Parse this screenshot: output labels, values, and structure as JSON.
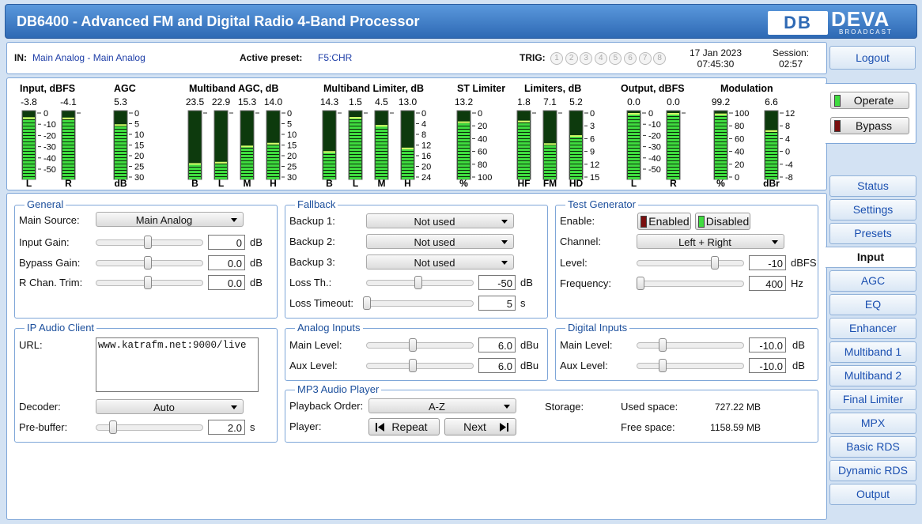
{
  "header": {
    "title": "DB6400 - Advanced FM and Digital Radio 4-Band Processor",
    "logo_mark": "DB",
    "logo_brand": "DEVA",
    "logo_sub": "BROADCAST"
  },
  "status": {
    "in_label": "IN:",
    "in_value": "Main Analog - Main Analog",
    "preset_label": "Active preset:",
    "preset_value": "F5:CHR",
    "trig_label": "TRIG:",
    "trig": [
      "1",
      "2",
      "3",
      "4",
      "5",
      "6",
      "7",
      "8"
    ],
    "date": "17 Jan 2023",
    "time": "07:45:30",
    "session_label": "Session:",
    "session_value": "02:57"
  },
  "side": {
    "logout": "Logout",
    "operate": "Operate",
    "bypass": "Bypass",
    "menu": [
      {
        "label": "Status"
      },
      {
        "label": "Settings"
      },
      {
        "label": "Presets"
      },
      {
        "label": "Input",
        "active": true
      },
      {
        "label": "AGC"
      },
      {
        "label": "EQ"
      },
      {
        "label": "Enhancer"
      },
      {
        "label": "Multiband 1"
      },
      {
        "label": "Multiband 2"
      },
      {
        "label": "Final Limiter"
      },
      {
        "label": "MPX"
      },
      {
        "label": "Basic RDS"
      },
      {
        "label": "Dynamic RDS"
      },
      {
        "label": "Output"
      }
    ]
  },
  "meters": [
    {
      "title": "Input, dBFS",
      "bars": [
        {
          "label": "L",
          "value": -3.8
        },
        {
          "label": "R",
          "value": -4.1
        }
      ],
      "scales": [
        [
          0,
          -10,
          -20,
          -30,
          -40,
          -50
        ]
      ]
    },
    {
      "title": "AGC",
      "bars": [
        {
          "label": "dB",
          "value": 5.3
        }
      ],
      "scales": [
        [
          0,
          5,
          10,
          15,
          20,
          25,
          30
        ]
      ]
    },
    {
      "title": "Multiband AGC, dB",
      "bars": [
        {
          "label": "B",
          "value": 23.5
        },
        {
          "label": "L",
          "value": 22.9
        },
        {
          "label": "M",
          "value": 15.3
        },
        {
          "label": "H",
          "value": 14.0,
          "value_label": "14.0"
        }
      ],
      "scales": [
        [
          0,
          5,
          10,
          15,
          20,
          25,
          30
        ]
      ]
    },
    {
      "title": "Multiband Limiter, dB",
      "bars": [
        {
          "label": "B",
          "value": 14.3
        },
        {
          "label": "L",
          "value": 1.5
        },
        {
          "label": "M",
          "value": 4.5
        },
        {
          "label": "H",
          "value": 13.0,
          "value_label": "13.0"
        }
      ],
      "scales": [
        [
          0,
          4,
          8,
          12,
          16,
          20,
          24
        ]
      ]
    },
    {
      "title": "ST Limiter",
      "bars": [
        {
          "label": "%",
          "value": 13.2
        }
      ],
      "scales": [
        [
          0,
          20,
          40,
          60,
          80,
          100
        ]
      ]
    },
    {
      "title": "Limiters, dB",
      "bars": [
        {
          "label": "HF",
          "value": 1.8
        },
        {
          "label": "FM",
          "value": 7.1
        },
        {
          "label": "HD",
          "value": 5.2
        }
      ],
      "scales": [
        [
          0,
          3,
          6,
          9,
          12,
          15
        ]
      ]
    },
    {
      "title": "Output, dBFS",
      "bars": [
        {
          "label": "L",
          "value": 0.0,
          "value_label": "0.0"
        },
        {
          "label": "R",
          "value": 0.0,
          "value_label": "0.0"
        }
      ],
      "scales": [
        [
          0,
          -10,
          -20,
          -30,
          -40,
          -50
        ]
      ]
    },
    {
      "title": "Modulation",
      "bars": [
        {
          "label": "%",
          "value": 99.2
        },
        {
          "label": "dBr",
          "value": 6.6
        }
      ],
      "scales": [
        [
          100,
          80,
          60,
          40,
          20,
          0
        ],
        [
          12,
          8,
          4,
          0,
          -4,
          -8
        ]
      ]
    }
  ],
  "general": {
    "title": "General",
    "rows": [
      {
        "label": "Main Source:",
        "select": "Main Analog"
      },
      {
        "label": "Input Gain:",
        "value": "0",
        "unit": "dB"
      },
      {
        "label": "Bypass Gain:",
        "value": "0.0",
        "unit": "dB"
      },
      {
        "label": "R Chan. Trim:",
        "value": "0.0",
        "unit": "dB"
      }
    ]
  },
  "ip_audio_client": {
    "title": "IP Audio Client",
    "rows": [
      {
        "label": "URL:",
        "value": "www.katrafm.net:9000/live"
      },
      {
        "label": "Decoder:",
        "select": "Auto"
      },
      {
        "label": "Pre-buffer:",
        "value": "2.0",
        "unit": "s"
      }
    ]
  },
  "fallback": {
    "title": "Fallback",
    "rows": [
      {
        "label": "Backup 1:",
        "select": "Not used"
      },
      {
        "label": "Backup 2:",
        "select": "Not used"
      },
      {
        "label": "Backup 3:",
        "select": "Not used"
      },
      {
        "label": "Loss Th.:",
        "value": "-50",
        "unit": "dB"
      },
      {
        "label": "Loss Timeout:",
        "value": "5",
        "unit": "s"
      }
    ]
  },
  "analog_inputs": {
    "title": "Analog Inputs",
    "rows": [
      {
        "label": "Main Level:",
        "value": "6.0",
        "unit": "dBu"
      },
      {
        "label": "Aux Level:",
        "value": "6.0",
        "unit": "dBu"
      }
    ]
  },
  "mp3_player": {
    "title": "MP3 Audio Player",
    "rows": [
      {
        "label": "Playback Order:",
        "select": "A-Z"
      },
      {
        "label": "Player:",
        "buttons": [
          "Repeat",
          "Next"
        ]
      }
    ],
    "storage_label": "Storage:",
    "used_label": "Used space:",
    "used_value": "727.22 MB",
    "free_label": "Free space:",
    "free_value": "1158.59 MB"
  },
  "test_generator": {
    "title": "Test Generator",
    "rows": [
      {
        "label": "Enable:",
        "buttons": [
          "Enabled",
          "Disabled"
        ]
      },
      {
        "label": "Channel:",
        "select": "Left + Right"
      },
      {
        "label": "Level:",
        "value": "-10",
        "unit": "dBFS"
      },
      {
        "label": "Frequency:",
        "value": "400",
        "unit": "Hz"
      }
    ]
  },
  "digital_inputs": {
    "title": "Digital Inputs",
    "rows": [
      {
        "label": "Main Level:",
        "value": "-10.0",
        "unit": "dB"
      },
      {
        "label": "Aux Level:",
        "value": "-10.0",
        "unit": "dB"
      }
    ]
  }
}
